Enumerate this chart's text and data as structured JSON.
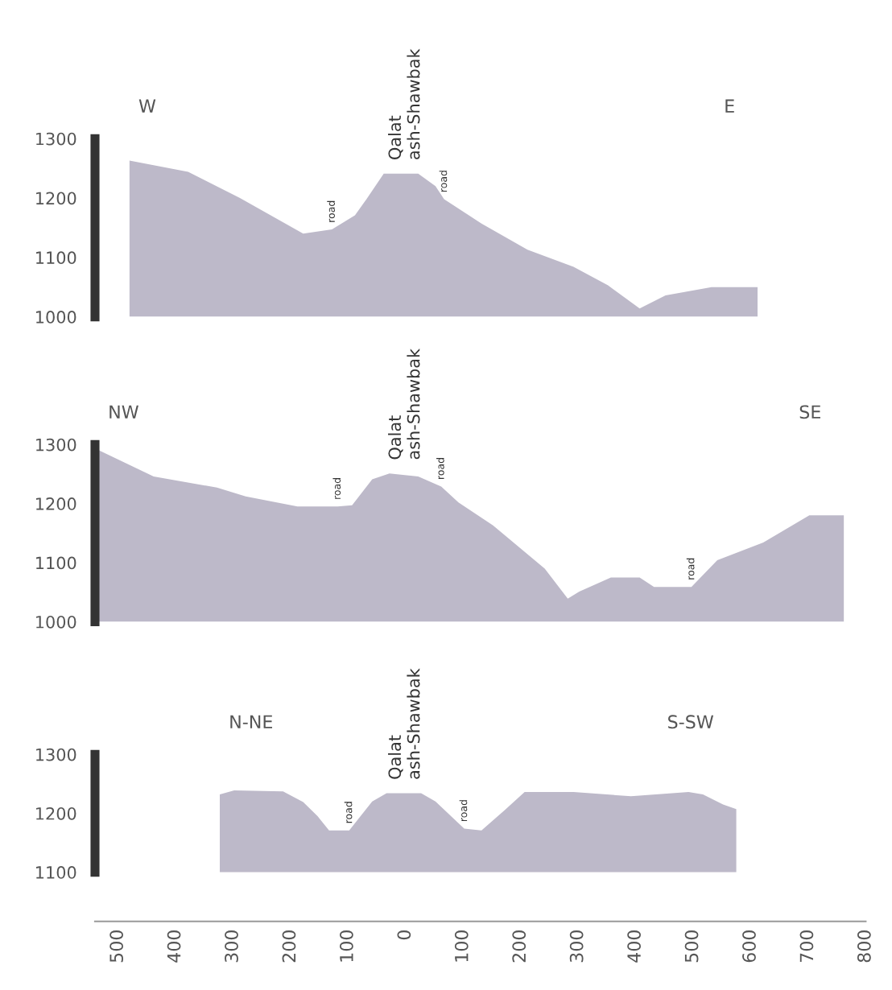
{
  "chart_data": [
    {
      "type": "area",
      "xlim": [
        -540,
        800
      ],
      "xticks": [
        -500,
        -400,
        -300,
        -200,
        -100,
        0,
        100,
        200,
        300,
        400,
        500,
        600,
        700,
        800
      ],
      "ylim": [
        1000,
        1300
      ],
      "yticks": [
        1000,
        1100,
        1200,
        1300
      ],
      "tick_labels": "y",
      "grid": false,
      "legend": false,
      "series": [
        {
          "color": "#bdb9c9",
          "x": [
            -480,
            -378,
            -288,
            -178,
            -128,
            -88,
            -68,
            -38,
            22,
            52,
            67,
            132,
            212,
            292,
            352,
            407,
            452,
            532,
            612
          ],
          "values": [
            1263,
            1244,
            1200,
            1140,
            1147,
            1171,
            1198,
            1241,
            1241,
            1220,
            1198,
            1157,
            1113,
            1084,
            1053,
            1014,
            1036,
            1050,
            1050
          ]
        }
      ],
      "annotations": [
        "W",
        "E",
        {
          "text": "Qalat\nash-Shawbak",
          "x": 0,
          "y": 1241
        },
        {
          "text": "road",
          "x": -128,
          "y": 1147
        },
        {
          "text": "road",
          "x": 67,
          "y": 1198
        }
      ]
    },
    {
      "type": "area",
      "xlim": [
        -540,
        800
      ],
      "xticks": [
        -500,
        -400,
        -300,
        -200,
        -100,
        0,
        100,
        200,
        300,
        400,
        500,
        600,
        700,
        800
      ],
      "ylim": [
        1000,
        1300
      ],
      "yticks": [
        1000,
        1100,
        1200,
        1300
      ],
      "tick_labels": "y",
      "grid": false,
      "legend": false,
      "series": [
        {
          "color": "#bdb9c9",
          "x": [
            -533,
            -438,
            -328,
            -278,
            -188,
            -118,
            -93,
            -58,
            -28,
            22,
            62,
            92,
            152,
            242,
            282,
            302,
            357,
            407,
            432,
            497,
            542,
            622,
            702,
            762
          ],
          "values": [
            1290,
            1246,
            1227,
            1212,
            1195,
            1195,
            1197,
            1241,
            1251,
            1246,
            1229,
            1202,
            1163,
            1090,
            1039,
            1051,
            1075,
            1075,
            1059,
            1059,
            1104,
            1134,
            1180,
            1180
          ]
        }
      ],
      "annotations": [
        "NW",
        "SE",
        {
          "text": "Qalat\nash-Shawbak",
          "x": 0,
          "y": 1251
        },
        {
          "text": "road",
          "x": -118,
          "y": 1195
        },
        {
          "text": "road",
          "x": 62,
          "y": 1229
        },
        {
          "text": "road",
          "x": 497,
          "y": 1059
        }
      ]
    },
    {
      "type": "area",
      "xlim": [
        -540,
        800
      ],
      "ylim": [
        1100,
        1300
      ],
      "yticks": [
        1100,
        1200,
        1300
      ],
      "xticks": [
        {
          "value": -500,
          "label": "500"
        },
        {
          "value": -400,
          "label": "400"
        },
        {
          "value": -300,
          "label": "300"
        },
        {
          "value": -200,
          "label": "200"
        },
        {
          "value": -100,
          "label": "100"
        },
        0,
        100,
        200,
        300,
        400,
        500,
        600,
        700,
        800
      ],
      "grid": false,
      "legend": false,
      "series": [
        {
          "color": "#bdb9c9",
          "x": [
            -323,
            -298,
            -213,
            -178,
            -153,
            -133,
            -98,
            -58,
            -33,
            27,
            52,
            102,
            132,
            172,
            207,
            292,
            392,
            492,
            517,
            552,
            575
          ],
          "values": [
            1232,
            1239,
            1237,
            1219,
            1195,
            1171,
            1171,
            1220,
            1234,
            1234,
            1220,
            1174,
            1171,
            1205,
            1236,
            1236,
            1229,
            1236,
            1232,
            1215,
            1207
          ]
        }
      ],
      "annotations": [
        "N-NE",
        "S-SW",
        {
          "text": "Qalat\nash-Shawbak",
          "x": 0,
          "y": 1234
        },
        {
          "text": "road",
          "x": -98,
          "y": 1171
        },
        {
          "text": "road",
          "x": 102,
          "y": 1174
        }
      ]
    }
  ]
}
